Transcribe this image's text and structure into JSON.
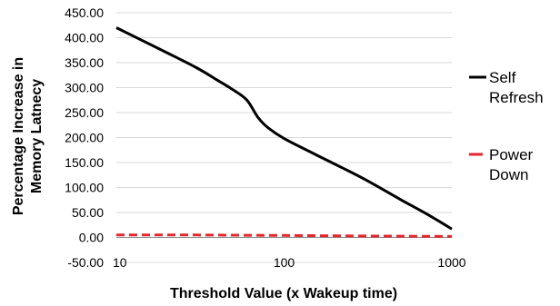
{
  "chart_data": {
    "type": "line",
    "xlabel": "Threshold Value (x Wakeup time)",
    "ylabel": [
      "Percentage Increase in",
      "Memory Latnecy"
    ],
    "x_scale": "log",
    "xlim": [
      10,
      1000
    ],
    "ylim": [
      -50,
      450
    ],
    "x_ticks": [
      10,
      100,
      1000
    ],
    "x_tick_labels": [
      "10",
      "100",
      "1000"
    ],
    "y_ticks": [
      -50,
      0,
      50,
      100,
      150,
      200,
      250,
      300,
      350,
      400,
      450
    ],
    "y_tick_labels": [
      "-50.00",
      "0.00",
      "50.00",
      "100.00",
      "150.00",
      "200.00",
      "250.00",
      "300.00",
      "350.00",
      "400.00",
      "450.00"
    ],
    "grid": "horizontal",
    "legend_position": "right",
    "series": [
      {
        "name": "Self Refresh",
        "legend_lines": [
          "Self",
          "Refresh"
        ],
        "color": "#000000",
        "style": "solid",
        "x": [
          10,
          20,
          30,
          40,
          50,
          60,
          70,
          80,
          100,
          150,
          200,
          300,
          500,
          700,
          1000
        ],
        "y": [
          420,
          370,
          340,
          315,
          295,
          275,
          240,
          220,
          198,
          168,
          147,
          117,
          75,
          48,
          17
        ]
      },
      {
        "name": "Power Down",
        "legend_lines": [
          "Power",
          "Down"
        ],
        "color": "#e8252a",
        "style": "dashed",
        "x": [
          10,
          30,
          100,
          300,
          1000
        ],
        "y": [
          5,
          5,
          4,
          3,
          2
        ]
      }
    ]
  }
}
